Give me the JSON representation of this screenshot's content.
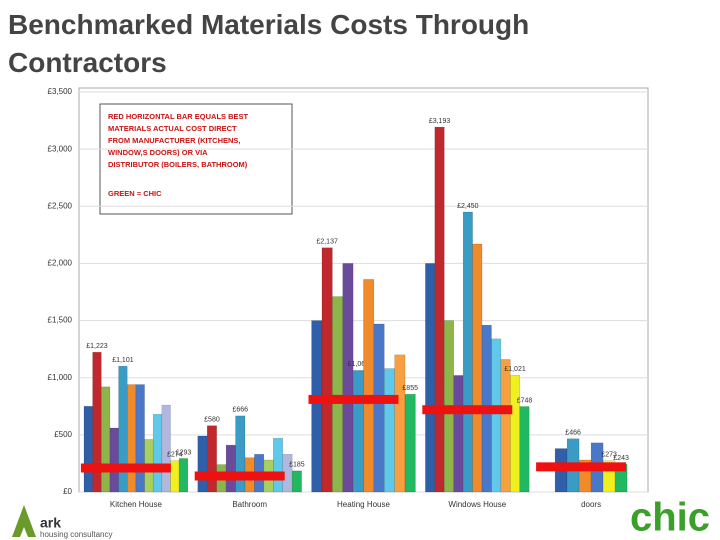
{
  "chart_data": {
    "type": "bar",
    "title": "Benchmarked Materials Costs Through Contractors",
    "categories": [
      "Kitchen House",
      "Bathroom",
      "Heating House",
      "Windows House",
      "doors"
    ],
    "series": [
      {
        "color": "#2e5fa8",
        "values": [
          750,
          490,
          1500,
          2000,
          380
        ]
      },
      {
        "color": "#c0282d",
        "values": [
          1223,
          580,
          2137,
          3193,
          null
        ],
        "value_labels": [
          "£1,223",
          "£580",
          "£2,137",
          "£3,193",
          null
        ]
      },
      {
        "color": "#8db54a",
        "values": [
          920,
          240,
          1710,
          1500,
          null
        ]
      },
      {
        "color": "#6a4a9a",
        "values": [
          560,
          410,
          2000,
          1020,
          null
        ]
      },
      {
        "color": "#3a9cc4",
        "values": [
          1101,
          666,
          1064,
          2450,
          466
        ],
        "value_labels": [
          "£1,101",
          "£666",
          "£1,064",
          "£2,450",
          "£466"
        ]
      },
      {
        "color": "#f08a2a",
        "values": [
          940,
          300,
          1860,
          2170,
          280
        ]
      },
      {
        "color": "#4a78c8",
        "values": [
          940,
          330,
          1470,
          1460,
          430
        ]
      },
      {
        "color": "#a8d060",
        "values": [
          460,
          280,
          null,
          null,
          null
        ]
      },
      {
        "color": "#60c8e8",
        "values": [
          680,
          470,
          1080,
          1340,
          null
        ]
      },
      {
        "color": "#b0b8e0",
        "values": [
          760,
          330,
          null,
          null,
          null
        ]
      },
      {
        "color": "#f8a040",
        "values": [
          null,
          null,
          1200,
          1160,
          null
        ]
      },
      {
        "color": "#f0f020",
        "values": [
          274,
          null,
          null,
          1021,
          273
        ],
        "value_labels": [
          "£274",
          null,
          null,
          "£1,021",
          "£273"
        ]
      },
      {
        "color": "#20b860",
        "values": [
          293,
          185,
          855,
          748,
          243
        ],
        "value_labels": [
          "£293",
          "£185",
          "£855",
          "£748",
          "£243"
        ]
      }
    ],
    "benchmark": {
      "color": "#ee1111",
      "values": [
        210,
        140,
        810,
        720,
        220
      ]
    },
    "ylim": [
      0,
      3500
    ],
    "yticks": [
      {
        "value": 0,
        "label": "£0"
      },
      {
        "value": 500,
        "label": "£500"
      },
      {
        "value": 1000,
        "label": "£1,000"
      },
      {
        "value": 1500,
        "label": "£1,500"
      },
      {
        "value": 2000,
        "label": "£2,000"
      },
      {
        "value": 2500,
        "label": "£2,500"
      },
      {
        "value": 3000,
        "label": "£3,000"
      },
      {
        "value": 3500,
        "label": "£3,500"
      }
    ],
    "grid": true,
    "annotation": {
      "lines": [
        "RED HORIZONTAL BAR EQUALS BEST",
        "MATERIALS ACTUAL COST DIRECT",
        "FROM MANUFACTURER (KITCHENS,",
        "WINDOW,S DOORS) OR VIA",
        "DISTRIBUTOR (BOILERS, BATHROOM)"
      ],
      "note": "GREEN = CHIC"
    }
  },
  "logos": {
    "left": "ark",
    "left_sub": "housing consultancy",
    "right": "chic"
  }
}
